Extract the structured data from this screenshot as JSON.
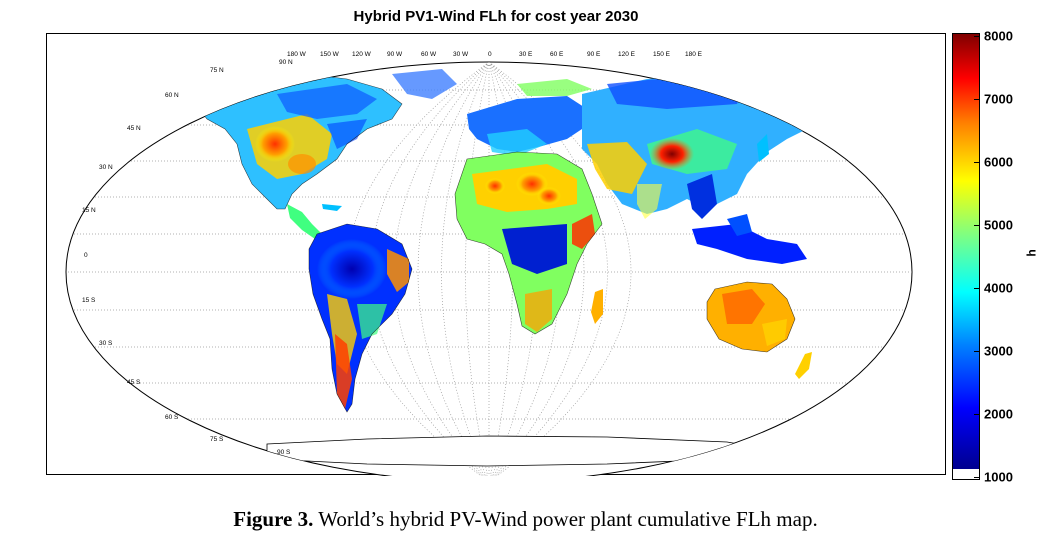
{
  "title": "Hybrid PV1-Wind FLh for cost year 2030",
  "caption": {
    "label": "Figure 3.",
    "text": "World’s hybrid PV-Wind power plant cumulative FLh map."
  },
  "colorbar": {
    "unit": "h",
    "ticks": [
      "8000",
      "7000",
      "6000",
      "5000",
      "4000",
      "3000",
      "2000",
      "1000"
    ],
    "range": [
      1000,
      8000
    ],
    "colors": [
      "#ffffff",
      "#00008f",
      "#0000ff",
      "#0080ff",
      "#00ffff",
      "#80ff80",
      "#ffff00",
      "#ff8000",
      "#ff0000",
      "#800000"
    ]
  },
  "longitude_labels": [
    "180 W",
    "150 W",
    "120 W",
    "90 W",
    "60 W",
    "30 W",
    "0",
    "30 E",
    "60 E",
    "90 E",
    "120 E",
    "150 E",
    "180 E"
  ],
  "latitude_labels_left": [
    "75 N",
    "60 N",
    "45 N",
    "30 N",
    "15 N",
    "0",
    "15 S",
    "30 S",
    "45 S",
    "60 S",
    "75 S"
  ],
  "pole_labels": [
    "90 N",
    "90 S"
  ],
  "projection": "pseudocylindrical world map with dotted graticule"
}
